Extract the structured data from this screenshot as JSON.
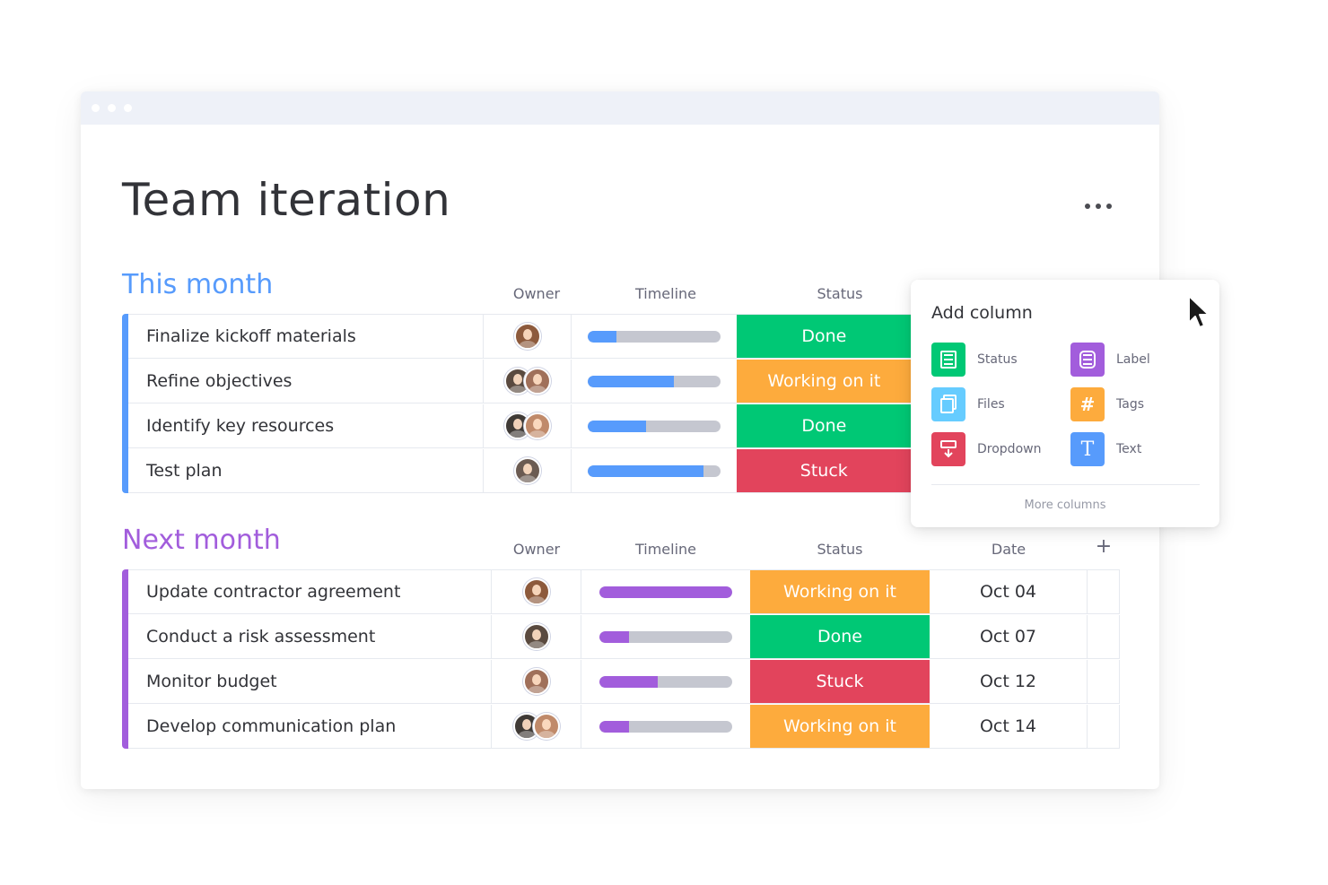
{
  "window": {
    "dots": 3
  },
  "board": {
    "title": "Team iteration"
  },
  "groups": [
    {
      "title": "This month",
      "color": "#579bfc",
      "columns": {
        "owner": "Owner",
        "timeline": "Timeline",
        "status": "Status"
      },
      "rows": [
        {
          "name": "Finalize kickoff materials",
          "owners": 1,
          "timeline_progress": 0.22,
          "status": "Done",
          "status_color": "#00c875"
        },
        {
          "name": "Refine objectives",
          "owners": 2,
          "timeline_progress": 0.65,
          "status": "Working on it",
          "status_color": "#fdab3d"
        },
        {
          "name": "Identify key resources",
          "owners": 2,
          "timeline_progress": 0.44,
          "status": "Done",
          "status_color": "#00c875"
        },
        {
          "name": "Test plan",
          "owners": 1,
          "timeline_progress": 0.87,
          "status": "Stuck",
          "status_color": "#e2445c"
        }
      ]
    },
    {
      "title": "Next month",
      "color": "#a25ddc",
      "columns": {
        "owner": "Owner",
        "timeline": "Timeline",
        "status": "Status",
        "date": "Date",
        "add": "+"
      },
      "rows": [
        {
          "name": "Update contractor agreement",
          "owners": 1,
          "timeline_progress": 1.0,
          "status": "Working on it",
          "status_color": "#fdab3d",
          "date": "Oct 04"
        },
        {
          "name": "Conduct a risk assessment",
          "owners": 1,
          "timeline_progress": 0.22,
          "status": "Done",
          "status_color": "#00c875",
          "date": "Oct 07"
        },
        {
          "name": "Monitor budget",
          "owners": 1,
          "timeline_progress": 0.44,
          "status": "Stuck",
          "status_color": "#e2445c",
          "date": "Oct 12"
        },
        {
          "name": "Develop communication plan",
          "owners": 2,
          "timeline_progress": 0.22,
          "status": "Working on it",
          "status_color": "#fdab3d",
          "date": "Oct 14"
        }
      ]
    }
  ],
  "add_column": {
    "title": "Add column",
    "items": [
      {
        "label": "Status",
        "icon": "status-icon",
        "color": "#00c875"
      },
      {
        "label": "Label",
        "icon": "label-icon",
        "color": "#a25ddc"
      },
      {
        "label": "Files",
        "icon": "files-icon",
        "color": "#66ccff"
      },
      {
        "label": "Tags",
        "icon": "tags-icon",
        "color": "#fdab3d"
      },
      {
        "label": "Dropdown",
        "icon": "dropdown-icon",
        "color": "#e2445c"
      },
      {
        "label": "Text",
        "icon": "text-icon",
        "color": "#579bfc"
      }
    ],
    "more": "More columns"
  },
  "avatar_colors": [
    "#8d5a3c",
    "#5a4a3f",
    "#a0705a",
    "#3f3a36",
    "#c08a6a",
    "#6b5b52"
  ]
}
